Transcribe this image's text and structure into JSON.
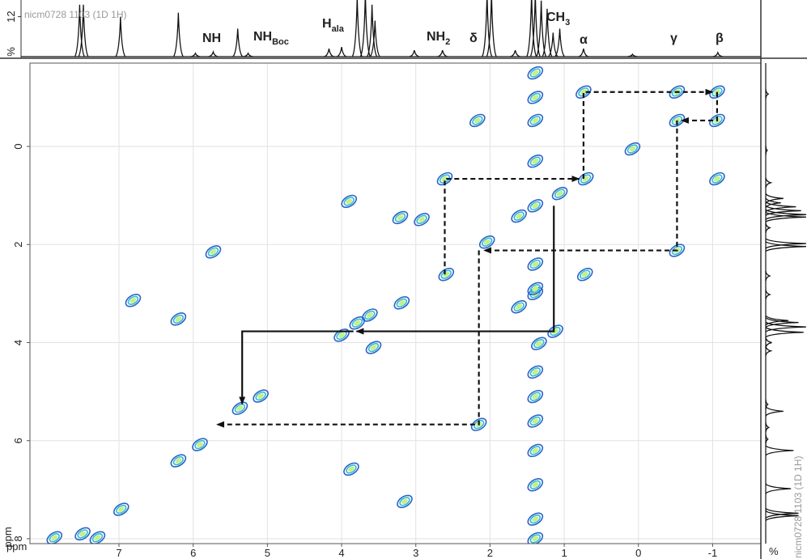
{
  "chart_data": {
    "type": "contour",
    "xlabel": "ppm",
    "ylabel": "ppm",
    "xlim": [
      8.2,
      -1.65
    ],
    "ylim": [
      -1.7,
      8.1
    ],
    "xticks": [
      7,
      6,
      5,
      4,
      3,
      2,
      1,
      0,
      -1
    ],
    "yticks": [
      0,
      2,
      4,
      6,
      8
    ],
    "grid": true,
    "colors": [
      "#2a62c9",
      "#35b9d6",
      "#c6ef8a"
    ],
    "arrow_color": "#111111",
    "peaks": {
      "x": [
        7.87,
        7.49,
        6.97,
        6.2,
        5.91,
        5.37,
        5.09,
        4.0,
        3.79,
        3.62,
        3.19,
        2.59,
        2.04,
        1.61,
        1.39,
        1.06,
        0.71,
        0.08,
        -0.52,
        -1.06,
        0.74,
        -0.52,
        -1.06,
        2.17,
        1.39,
        -1.06,
        2.61,
        3.9,
        3.21,
        2.92,
        5.73,
        0.72,
        1.61,
        6.81,
        6.2,
        1.12,
        1.34,
        3.57,
        2.15,
        3.87,
        3.15,
        7.29,
        -0.52,
        1.39,
        1.39,
        1.39,
        1.39,
        1.39,
        1.39,
        1.39,
        1.39,
        1.39,
        1.39,
        1.39,
        1.39,
        1.39
      ],
      "y": [
        7.98,
        7.9,
        7.4,
        6.41,
        6.08,
        5.34,
        5.09,
        3.85,
        3.6,
        3.44,
        3.19,
        2.61,
        1.95,
        1.42,
        1.21,
        0.96,
        0.66,
        0.05,
        -0.53,
        -1.11,
        -1.11,
        -1.11,
        -0.53,
        -0.53,
        -0.53,
        0.66,
        0.66,
        1.12,
        1.45,
        1.49,
        2.15,
        2.61,
        3.27,
        3.14,
        3.52,
        3.77,
        4.02,
        4.1,
        5.67,
        6.58,
        7.24,
        7.98,
        2.12,
        -1.5,
        -1.0,
        0.3,
        2.4,
        3.0,
        4.6,
        5.1,
        5.6,
        6.2,
        6.9,
        7.6,
        8.0,
        2.9
      ]
    },
    "arrows": [
      {
        "style": "dashed",
        "points": [
          [
            0.74,
            0.66
          ],
          [
            0.74,
            -1.11
          ],
          [
            -1.0,
            -1.11
          ]
        ]
      },
      {
        "style": "dashed",
        "points": [
          [
            -1.06,
            -1.11
          ],
          [
            -1.06,
            -0.53
          ],
          [
            -0.58,
            -0.53
          ]
        ]
      },
      {
        "style": "dashed",
        "points": [
          [
            -0.52,
            -0.53
          ],
          [
            -0.52,
            2.12
          ],
          [
            2.08,
            2.12
          ]
        ]
      },
      {
        "style": "dashed",
        "points": [
          [
            2.61,
            2.61
          ],
          [
            2.61,
            0.66
          ],
          [
            0.8,
            0.66
          ]
        ]
      },
      {
        "style": "dashed",
        "points": [
          [
            2.15,
            2.12
          ],
          [
            2.15,
            5.67
          ],
          [
            5.68,
            5.67
          ]
        ]
      },
      {
        "style": "solid",
        "points": [
          [
            1.14,
            1.21
          ],
          [
            1.14,
            3.77
          ],
          [
            3.8,
            3.77
          ]
        ]
      },
      {
        "style": "solid",
        "points": [
          [
            3.84,
            3.77
          ],
          [
            5.34,
            3.77
          ],
          [
            5.34,
            5.25
          ]
        ]
      }
    ],
    "projection": {
      "label": "nicm0728 1103 (1D 1H)",
      "ylabel": "%",
      "ylim": [
        0,
        17
      ],
      "yticks": [
        12
      ],
      "x": [
        7.53,
        7.48,
        6.98,
        6.2,
        5.97,
        5.73,
        5.4,
        5.26,
        4.17,
        4.0,
        3.79,
        3.68,
        3.59,
        3.55,
        3.02,
        2.64,
        2.04,
        1.98,
        1.66,
        1.44,
        1.39,
        1.31,
        1.23,
        1.15,
        1.06,
        0.74,
        0.08,
        -1.07
      ],
      "heights": [
        15.6,
        15.6,
        12,
        13.2,
        1,
        1.4,
        8.4,
        1,
        2.4,
        2.9,
        18,
        19.2,
        15.6,
        10.8,
        1.9,
        1.9,
        19.2,
        19.2,
        1.9,
        19.2,
        19.2,
        16.8,
        14.4,
        7.2,
        8.4,
        2.4,
        0.7,
        1.2
      ]
    },
    "peak_labels": [
      {
        "text": "NH"
      },
      {
        "text": "NH",
        "sub": "Boc"
      },
      {
        "text": "H",
        "sub": "ala"
      },
      {
        "text": "NH",
        "sub": "2"
      },
      {
        "text": "δ"
      },
      {
        "text": "CH",
        "sub": "3"
      },
      {
        "text": "α"
      },
      {
        "text": "γ"
      },
      {
        "text": "β"
      }
    ]
  }
}
